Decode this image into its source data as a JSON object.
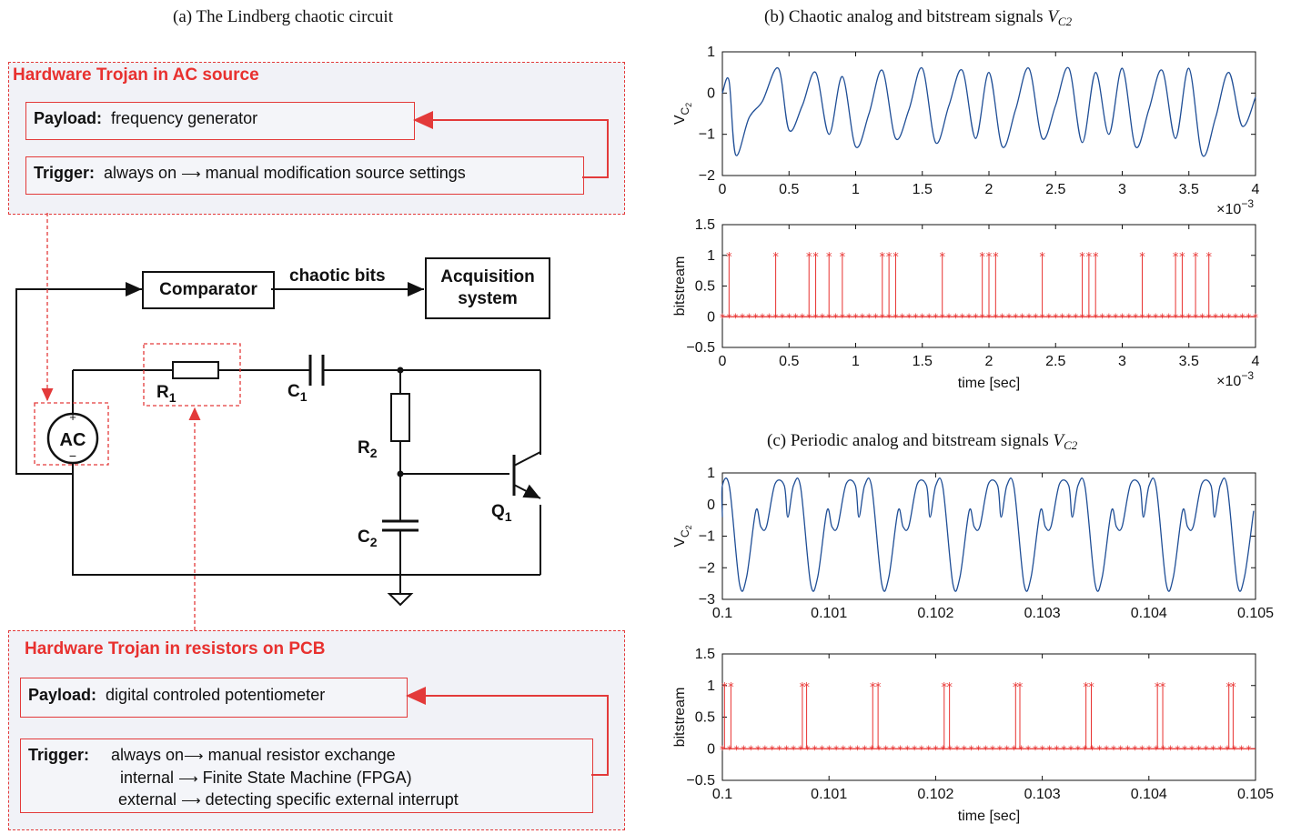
{
  "circuit": {
    "caption": "(a) The Lindberg chaotic circuit",
    "trojan_ac": {
      "title": "Hardware Trojan in AC source",
      "payload_key": "Payload:",
      "payload_val": "frequency generator",
      "trigger_key": "Trigger:",
      "trigger_val_1": "always on",
      "trigger_val_2": "manual modification source settings"
    },
    "trojan_res": {
      "title": "Hardware Trojan in resistors on PCB",
      "payload_key": "Payload:",
      "payload_val": "digital controled potentiometer",
      "trigger_key": "Trigger:",
      "rows": [
        {
          "cond": "always on",
          "action": "manual resistor exchange"
        },
        {
          "cond": "internal",
          "action": "Finite State Machine (FPGA)"
        },
        {
          "cond": "external",
          "action": "detecting specific external interrupt"
        }
      ]
    },
    "comparator": "Comparator",
    "chaotic_bits": "chaotic bits",
    "acq_line1": "Acquisition",
    "acq_line2": "system",
    "ac": "AC",
    "plus": "+",
    "minus": "−",
    "r1": "R",
    "r1s": "1",
    "r2": "R",
    "r2s": "2",
    "c1": "C",
    "c1s": "1",
    "c2": "C",
    "c2s": "2",
    "q1": "Q",
    "q1s": "1"
  },
  "colors": {
    "trojan": "#e8312f",
    "analog": "#1f4e96",
    "bits": "#e8312f",
    "box_fill": "#f1f2f7"
  },
  "chart_data": [
    {
      "caption_pre": "(b) Chaotic analog and bitstream signals ",
      "caption_sym": "V",
      "caption_sub": "C2",
      "type": "line",
      "ylabel_main": "V",
      "ylabel_sub": "C",
      "ylabel_sub2": "2",
      "xlim": [
        0,
        4
      ],
      "ylim": [
        -2,
        1
      ],
      "xticks": [
        "0",
        "0.5",
        "1",
        "1.5",
        "2",
        "2.5",
        "3",
        "3.5",
        "4"
      ],
      "yticks": [
        "1",
        "0",
        "−1",
        "−2"
      ],
      "x_exponent_base": "×10",
      "x_exponent_power": "−3",
      "series": [
        {
          "x": [
            0,
            0.05,
            0.1,
            0.2,
            0.3,
            0.42,
            0.5,
            0.6,
            0.7,
            0.8,
            0.9,
            1.0,
            1.1,
            1.2,
            1.3,
            1.4,
            1.5,
            1.6,
            1.7,
            1.8,
            1.9,
            2.0,
            2.1,
            2.2,
            2.3,
            2.4,
            2.5,
            2.6,
            2.7,
            2.8,
            2.9,
            3.0,
            3.1,
            3.2,
            3.3,
            3.4,
            3.5,
            3.6,
            3.7,
            3.8,
            3.9,
            4.0
          ],
          "y": [
            0,
            0.3,
            -1.5,
            -0.6,
            -0.2,
            0.6,
            -0.9,
            -0.3,
            0.5,
            -1.0,
            0.4,
            -1.3,
            -0.5,
            0.55,
            -1.1,
            -0.4,
            0.6,
            -1.2,
            -0.3,
            0.55,
            -1.1,
            0.5,
            -1.3,
            -0.4,
            0.6,
            -1.1,
            -0.3,
            0.6,
            -1.2,
            0.5,
            -1.0,
            0.6,
            -1.3,
            -0.4,
            0.55,
            -1.1,
            0.6,
            -1.5,
            -0.6,
            0.5,
            -0.8,
            -0.1
          ]
        }
      ]
    },
    {
      "type": "scatter",
      "ylabel": "bitstream",
      "xlabel": "time [sec]",
      "xlim": [
        0,
        4
      ],
      "ylim": [
        -0.5,
        1.5
      ],
      "xticks": [
        "0",
        "0.5",
        "1",
        "1.5",
        "2",
        "2.5",
        "3",
        "3.5",
        "4"
      ],
      "yticks": [
        "1.5",
        "1",
        "0.5",
        "0",
        "−0.5"
      ],
      "x_exponent_base": "×10",
      "x_exponent_power": "−3",
      "ones_x": [
        0.05,
        0.4,
        0.65,
        0.7,
        0.8,
        0.9,
        1.2,
        1.25,
        1.3,
        1.65,
        1.95,
        2.0,
        2.05,
        2.4,
        2.7,
        2.75,
        2.8,
        3.15,
        3.4,
        3.45,
        3.55,
        3.65
      ],
      "zeros_step": 0.05
    },
    {
      "caption_pre": "(c) Periodic analog and bitstream signals ",
      "caption_sym": "V",
      "caption_sub": "C2",
      "type": "line",
      "ylabel_main": "V",
      "ylabel_sub": "C",
      "ylabel_sub2": "2",
      "xlim": [
        0.1,
        0.105
      ],
      "ylim": [
        -3,
        1
      ],
      "xticks": [
        "0.1",
        "0.101",
        "0.102",
        "0.103",
        "0.104",
        "0.105"
      ],
      "yticks": [
        "1",
        "0",
        "−1",
        "−2",
        "−3"
      ],
      "period": 0.000667,
      "series": [
        {
          "x_phase": [
            0,
            0.08,
            0.18,
            0.32,
            0.42,
            0.55,
            0.62,
            0.7,
            0.82,
            0.95,
            1.0
          ],
          "y": [
            -0.4,
            0.6,
            0.55,
            -2.5,
            -2.3,
            -0.2,
            -0.7,
            -0.7,
            0.65,
            0.6,
            -0.4
          ]
        }
      ]
    },
    {
      "type": "scatter",
      "ylabel": "bitstream",
      "xlabel": "time [sec]",
      "xlim": [
        0.1,
        0.105
      ],
      "ylim": [
        -0.5,
        1.5
      ],
      "xticks": [
        "0.1",
        "0.101",
        "0.102",
        "0.103",
        "0.104",
        "0.105"
      ],
      "yticks": [
        "1.5",
        "1",
        "0.5",
        "0",
        "−0.5"
      ],
      "ones_x": [
        0.10002,
        0.10008,
        0.10075,
        0.10079,
        0.10141,
        0.10146,
        0.10208,
        0.10213,
        0.10275,
        0.10279,
        0.10341,
        0.10346,
        0.10408,
        0.10413,
        0.10475,
        0.10479
      ],
      "zeros_step": 6.67e-05
    }
  ]
}
